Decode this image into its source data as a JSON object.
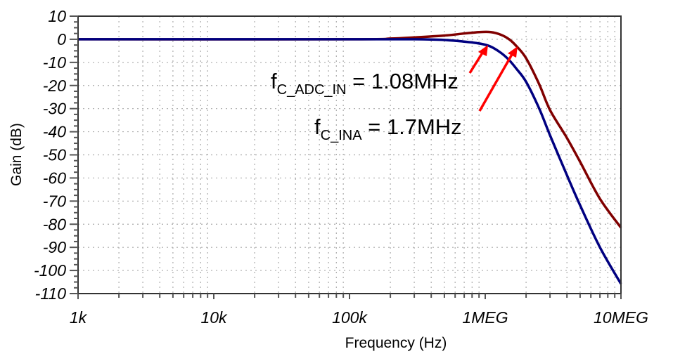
{
  "chart_data": {
    "type": "line",
    "title": "",
    "xlabel": "Frequency (Hz)",
    "ylabel": "Gain (dB)",
    "xscale": "log",
    "xlim": [
      1000,
      10000000
    ],
    "ylim": [
      -110,
      10
    ],
    "x_ticks": [
      {
        "value": 1000,
        "label": "1k"
      },
      {
        "value": 10000,
        "label": "10k"
      },
      {
        "value": 100000,
        "label": "100k"
      },
      {
        "value": 1000000,
        "label": "1MEG"
      },
      {
        "value": 10000000,
        "label": "10MEG"
      }
    ],
    "y_ticks": [
      10,
      0,
      -10,
      -20,
      -30,
      -40,
      -50,
      -60,
      -70,
      -80,
      -90,
      -100,
      -110
    ],
    "grid": true,
    "series": [
      {
        "name": "INA",
        "color": "#800000",
        "x": [
          1000,
          100000,
          200000,
          300000,
          500000,
          700000,
          900000,
          1100000,
          1300000,
          1500000,
          1700000,
          2000000,
          2500000,
          3000000,
          4000000,
          5000000,
          7000000,
          10000000
        ],
        "y": [
          0,
          0,
          0.3,
          0.8,
          1.6,
          2.5,
          3.1,
          3.1,
          2.0,
          0,
          -3,
          -8.2,
          -19.5,
          -30.6,
          -42.7,
          -53,
          -69,
          -81.5
        ]
      },
      {
        "name": "ADC_IN",
        "color": "#000080",
        "x": [
          1000,
          100000,
          300000,
          500000,
          700000,
          900000,
          1080000,
          1300000,
          1500000,
          1700000,
          2000000,
          2500000,
          3000000,
          4000000,
          5000000,
          7000000,
          10000000
        ],
        "y": [
          0,
          0,
          0,
          -0.3,
          -1.0,
          -1.8,
          -3,
          -5.8,
          -9,
          -12.8,
          -18.4,
          -30,
          -41.5,
          -58.8,
          -71.8,
          -90,
          -105.8
        ]
      }
    ],
    "annotations": [
      {
        "text_main": "f",
        "text_sub": "C_ADC_IN",
        "text_rest": " = 1.08MHz",
        "points_to": {
          "x": 1080000,
          "y": -3
        },
        "color": "#ff0000"
      },
      {
        "text_main": "f",
        "text_sub": "C_INA",
        "text_rest": " = 1.7MHz",
        "points_to": {
          "x": 1700000,
          "y": -3
        },
        "color": "#ff0000"
      }
    ]
  }
}
